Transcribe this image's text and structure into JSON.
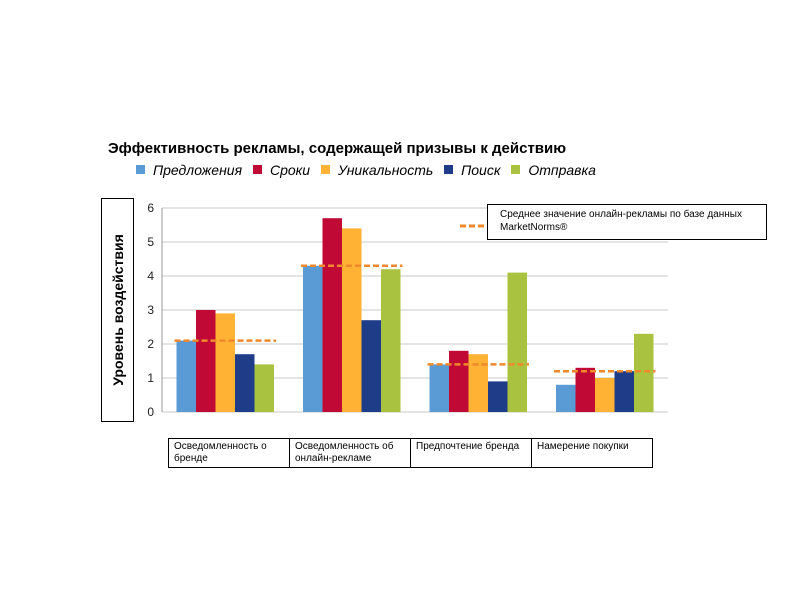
{
  "chart_data": {
    "type": "bar",
    "title": "Эффективность рекламы, содержащей призывы к действию",
    "ylabel": "Уровень воздействия",
    "xlabel": "",
    "ylim": [
      0,
      6
    ],
    "yticks": [
      "0",
      "1",
      "2",
      "3",
      "4",
      "5",
      "6"
    ],
    "grid": true,
    "categories": [
      "Осведомленность о бренде",
      "Осведомленность об онлайн-рекламе",
      "Предпочтение бренда",
      "Намерение покупки"
    ],
    "series": [
      {
        "name": "Предложения",
        "color": "#5B9BD5",
        "values": [
          2.1,
          4.3,
          1.4,
          0.8
        ]
      },
      {
        "name": "Сроки",
        "color": "#C00A35",
        "values": [
          3.0,
          5.7,
          1.8,
          1.3
        ]
      },
      {
        "name": "Уникальность",
        "color": "#FFB233",
        "values": [
          2.9,
          5.4,
          1.7,
          1.0
        ]
      },
      {
        "name": "Поиск",
        "color": "#1F3C88",
        "values": [
          1.7,
          2.7,
          0.9,
          1.2
        ]
      },
      {
        "name": "Отправка",
        "color": "#A9C23F",
        "values": [
          1.4,
          4.2,
          4.1,
          2.3
        ]
      }
    ],
    "benchmark": {
      "label": "Среднее значение онлайн-рекламы по базе данных MarketNorms®",
      "color": "#F0892B",
      "values": [
        2.1,
        4.3,
        1.4,
        1.2
      ]
    }
  }
}
